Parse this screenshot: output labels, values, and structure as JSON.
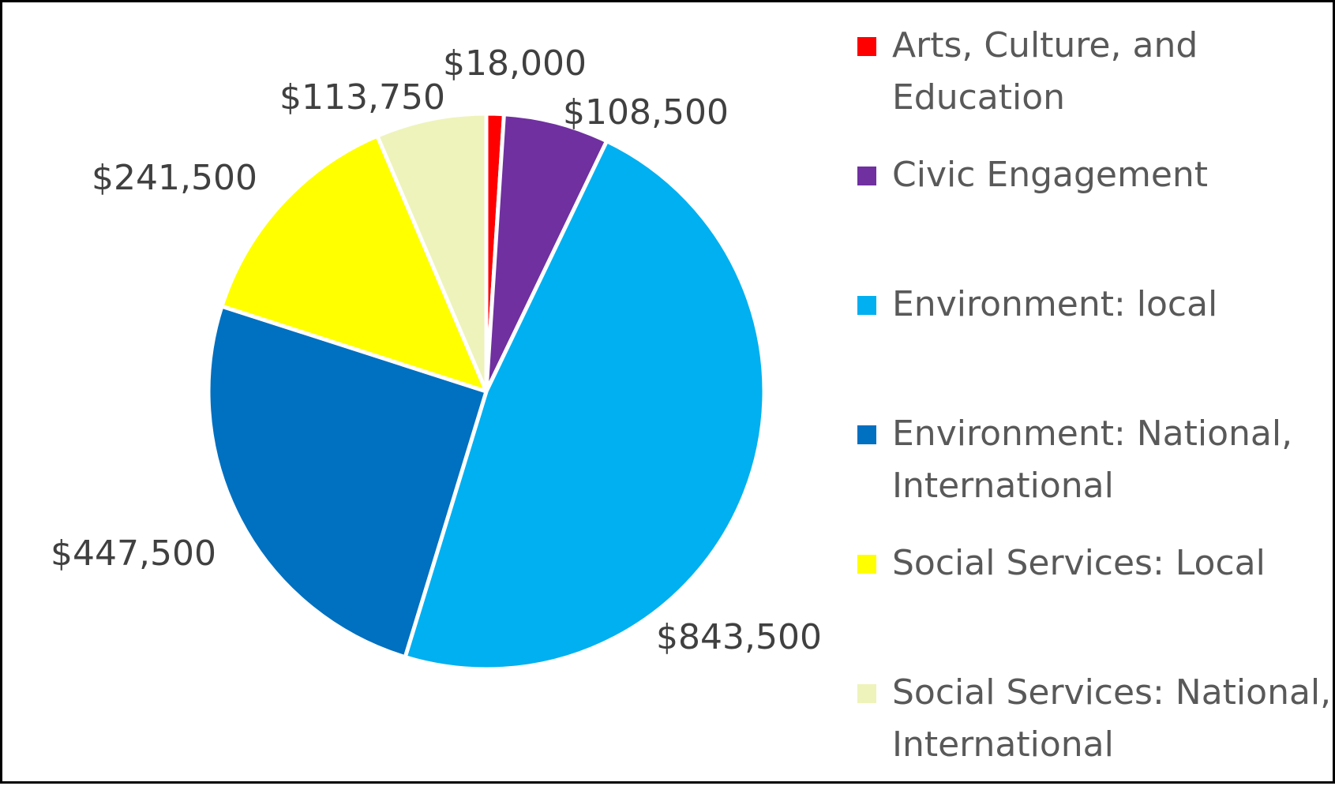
{
  "chart_data": {
    "type": "pie",
    "categories": [
      "Arts, Culture, and Education",
      "Civic Engagement",
      "Environment: local",
      "Environment: National, International",
      "Social Services: Local",
      "Social Services: National, International"
    ],
    "values": [
      18000,
      108500,
      843500,
      447500,
      241500,
      113750
    ],
    "data_labels": [
      "$18,000",
      "$108,500",
      "$843,500",
      "$447,500",
      "$241,500",
      "$113,750"
    ],
    "colors": [
      "#FF0000",
      "#7030A0",
      "#00B0F0",
      "#0070C0",
      "#FFFF00",
      "#EEF3BB"
    ],
    "legend_placement": "right",
    "title": ""
  }
}
